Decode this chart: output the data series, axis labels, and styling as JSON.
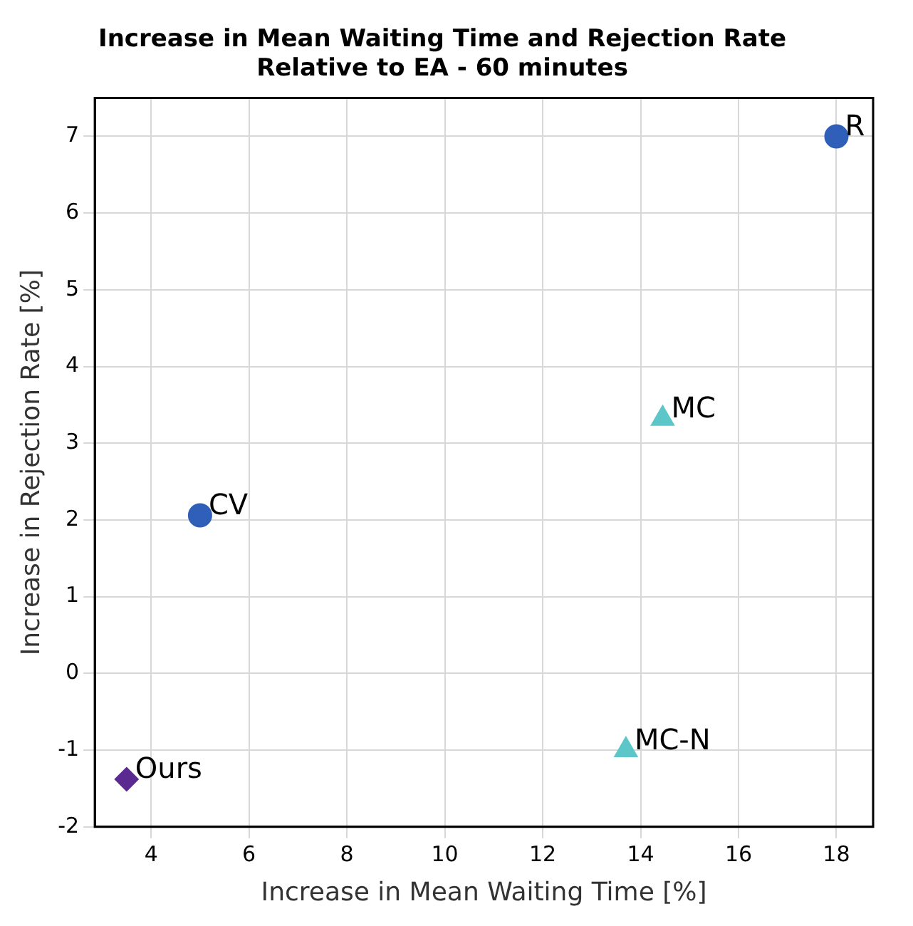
{
  "chart_data": {
    "type": "scatter",
    "title": "Increase in Mean Waiting Time and Rejection Rate\nRelative to EA - 60 minutes",
    "xlabel": "Increase in Mean Waiting Time [%]",
    "ylabel": "Increase in Rejection Rate [%]",
    "xlim": [
      2.85,
      18.75
    ],
    "ylim": [
      -2,
      7.5
    ],
    "xticks": [
      4,
      6,
      8,
      10,
      12,
      14,
      16,
      18
    ],
    "yticks": [
      -2,
      -1,
      0,
      1,
      2,
      3,
      4,
      5,
      6,
      7
    ],
    "grid": true,
    "legend": false,
    "series": [
      {
        "name": "R",
        "color": "#2f5fb8",
        "marker": "circle",
        "x": [
          18.0
        ],
        "values": [
          7.0
        ]
      },
      {
        "name": "CV",
        "color": "#2f5fb8",
        "marker": "circle",
        "x": [
          5.0
        ],
        "values": [
          2.06
        ]
      },
      {
        "name": "MC",
        "color": "#5cc6c8",
        "marker": "triangle",
        "x": [
          14.45
        ],
        "values": [
          3.32
        ]
      },
      {
        "name": "MC-N",
        "color": "#5cc6c8",
        "marker": "triangle",
        "x": [
          13.7
        ],
        "values": [
          -1.0
        ]
      },
      {
        "name": "Ours",
        "color": "#5b2a91",
        "marker": "diamond",
        "x": [
          3.5
        ],
        "values": [
          -1.38
        ]
      }
    ]
  }
}
